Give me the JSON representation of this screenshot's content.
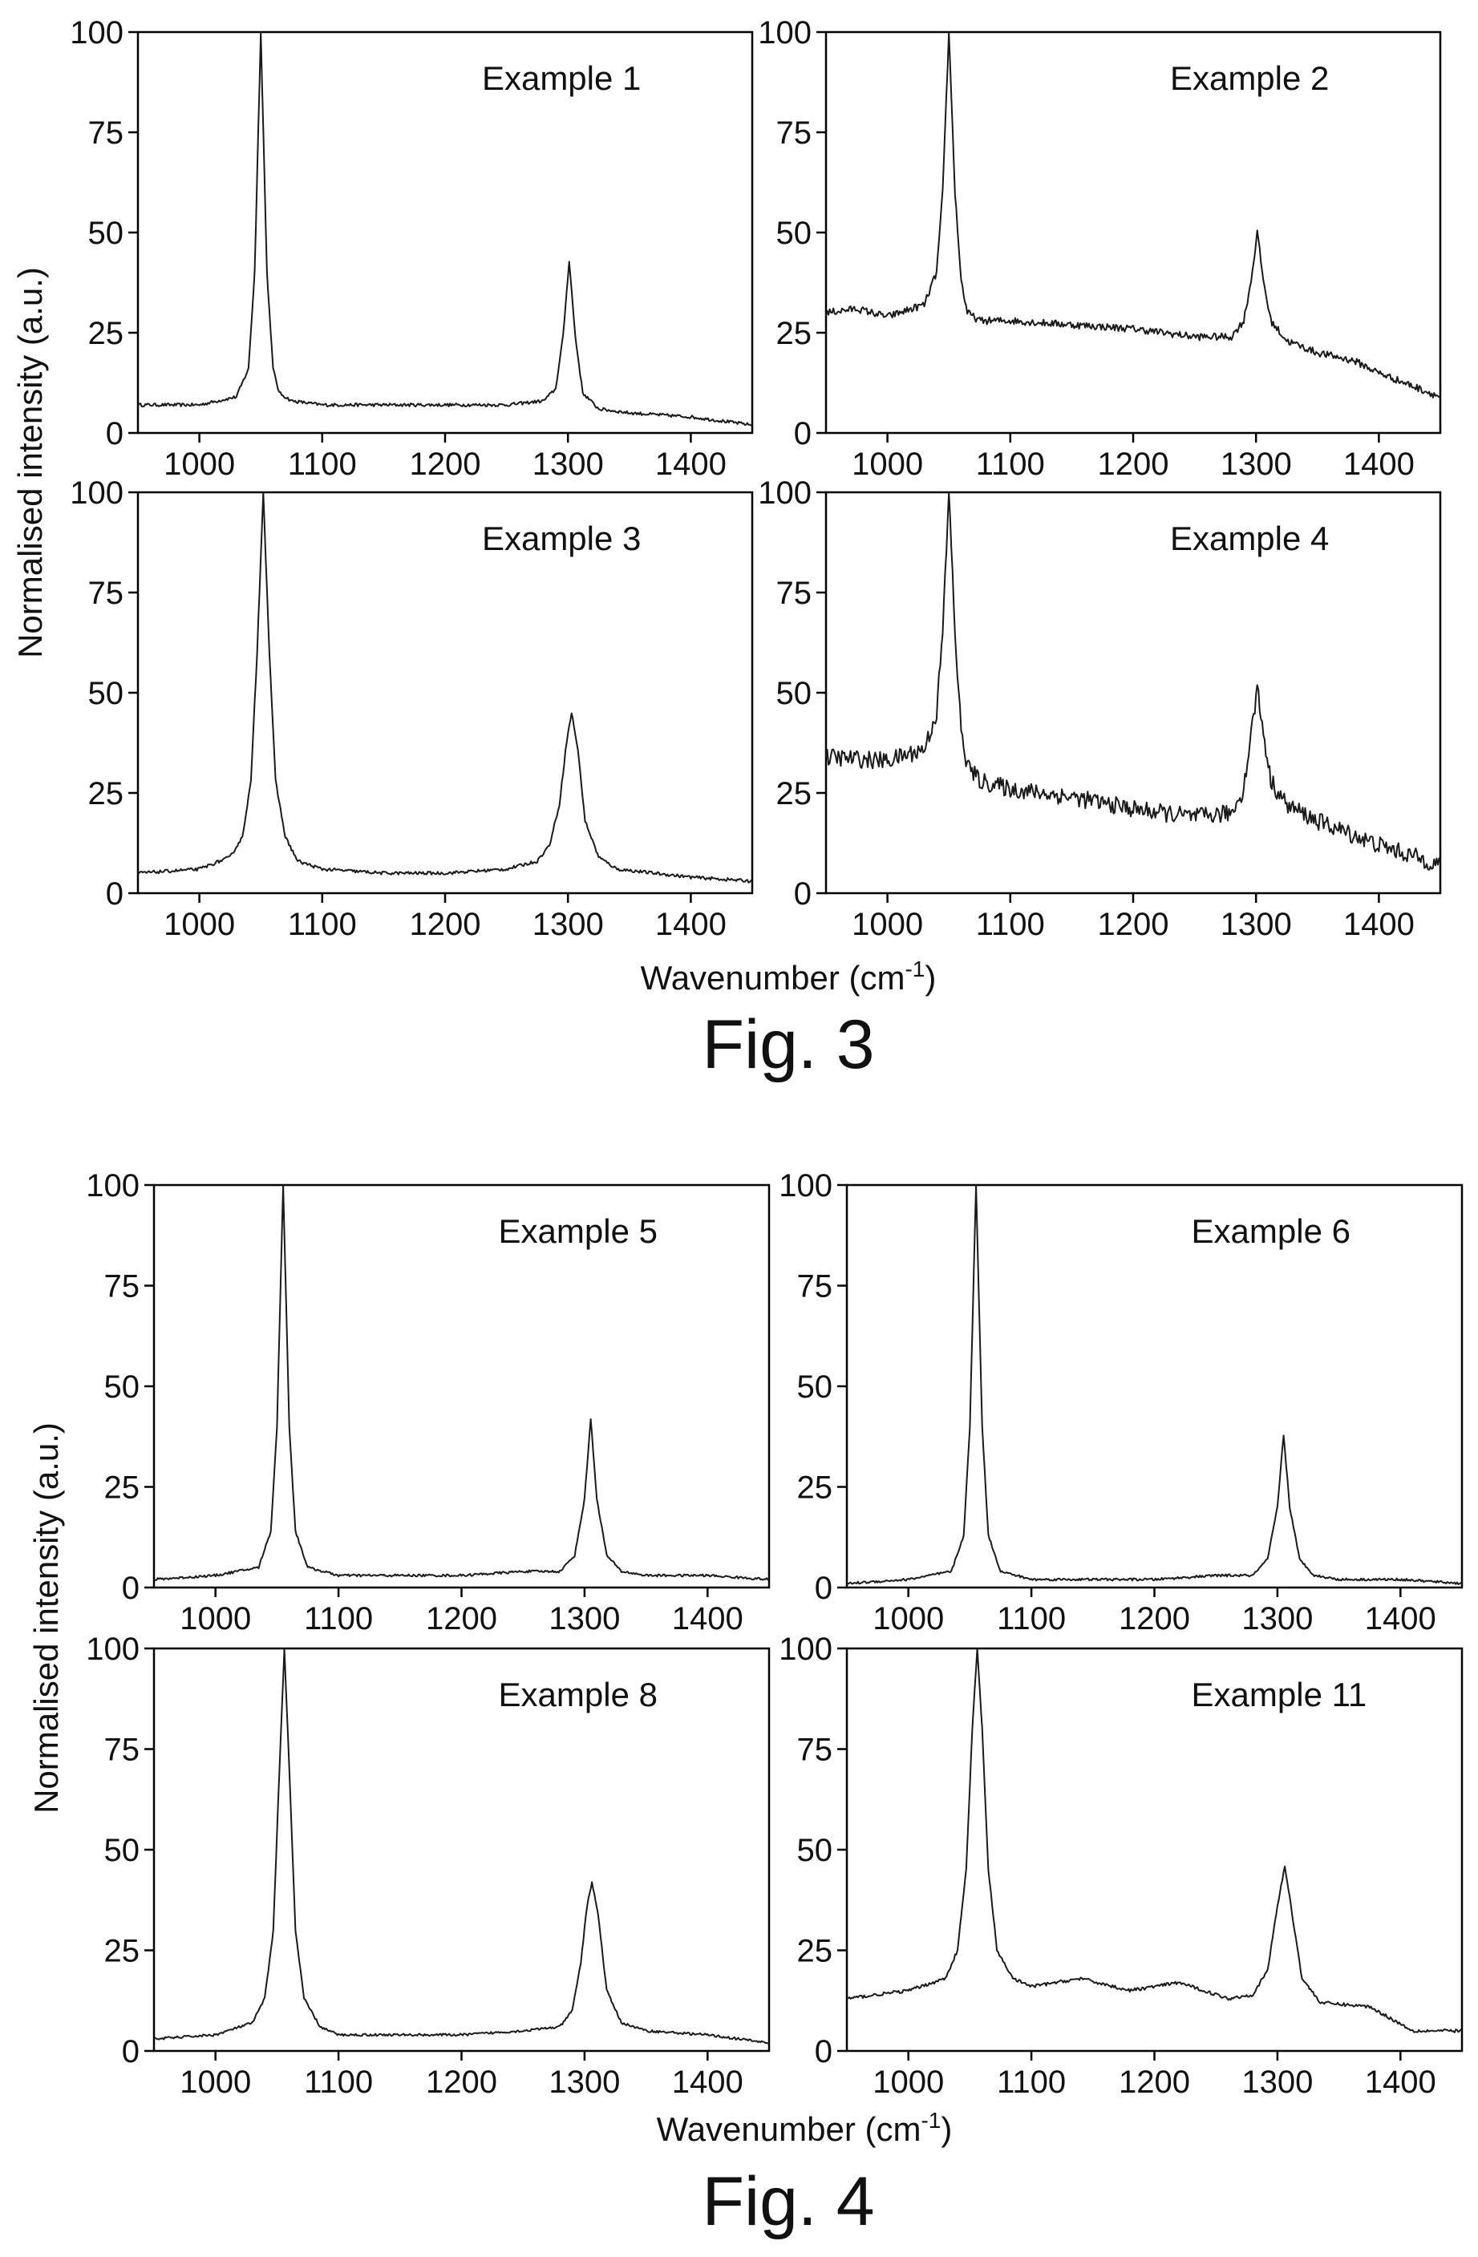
{
  "figures": [
    {
      "caption": "Fig. 3",
      "xlabel": "Wavenumber (cm",
      "xlabel_sup": "-1",
      "xlabel_close": ")",
      "ylabel": "Normalised intensity (a.u.)"
    },
    {
      "caption": "Fig. 4",
      "xlabel": "Wavenumber (cm",
      "xlabel_sup": "-1",
      "xlabel_close": ")",
      "ylabel": "Normalised intensity (a.u.)"
    }
  ],
  "chart_data": [
    {
      "type": "line",
      "figure": "Fig. 3",
      "label": "Example 1",
      "xlim": [
        950,
        1450
      ],
      "ylim": [
        0,
        100
      ],
      "xticks": [
        1000,
        1100,
        1200,
        1300,
        1400
      ],
      "yticks": [
        0,
        25,
        50,
        75,
        100
      ],
      "x": [
        950,
        1000,
        1030,
        1040,
        1045,
        1050,
        1055,
        1060,
        1065,
        1075,
        1100,
        1150,
        1200,
        1250,
        1280,
        1290,
        1296,
        1301,
        1306,
        1312,
        1325,
        1350,
        1400,
        1450
      ],
      "values": [
        7,
        7,
        9,
        16,
        40,
        100,
        40,
        16,
        10,
        8,
        7,
        7,
        7,
        7,
        8,
        11,
        24,
        43,
        24,
        10,
        6,
        5,
        4,
        2
      ],
      "noise": 0.4
    },
    {
      "type": "line",
      "figure": "Fig. 3",
      "label": "Example 2",
      "xlim": [
        950,
        1450
      ],
      "ylim": [
        0,
        100
      ],
      "xticks": [
        1000,
        1100,
        1200,
        1300,
        1400
      ],
      "yticks": [
        0,
        25,
        50,
        75,
        100
      ],
      "x": [
        950,
        975,
        1000,
        1030,
        1040,
        1045,
        1050,
        1055,
        1060,
        1065,
        1075,
        1100,
        1150,
        1200,
        1250,
        1280,
        1290,
        1296,
        1301,
        1306,
        1312,
        1325,
        1350,
        1380,
        1400,
        1450
      ],
      "values": [
        30,
        31,
        29,
        32,
        40,
        60,
        100,
        60,
        38,
        30,
        28,
        28,
        27,
        26,
        24,
        24,
        28,
        38,
        50,
        38,
        28,
        23,
        20,
        18,
        15,
        9
      ],
      "noise": 0.9
    },
    {
      "type": "line",
      "figure": "Fig. 3",
      "label": "Example 3",
      "xlim": [
        950,
        1450
      ],
      "ylim": [
        0,
        100
      ],
      "xticks": [
        1000,
        1100,
        1200,
        1300,
        1400
      ],
      "yticks": [
        0,
        25,
        50,
        75,
        100
      ],
      "x": [
        950,
        1000,
        1025,
        1035,
        1042,
        1047,
        1052,
        1057,
        1062,
        1070,
        1080,
        1100,
        1150,
        1200,
        1250,
        1275,
        1285,
        1293,
        1299,
        1303,
        1308,
        1314,
        1325,
        1340,
        1400,
        1450
      ],
      "values": [
        5,
        6,
        9,
        14,
        28,
        60,
        100,
        60,
        28,
        14,
        8,
        6,
        5,
        5,
        6,
        8,
        12,
        22,
        38,
        45,
        36,
        18,
        9,
        6,
        4,
        3
      ],
      "noise": 0.4
    },
    {
      "type": "line",
      "figure": "Fig. 3",
      "label": "Example 4",
      "xlim": [
        950,
        1450
      ],
      "ylim": [
        0,
        100
      ],
      "xticks": [
        1000,
        1100,
        1200,
        1300,
        1400
      ],
      "yticks": [
        0,
        25,
        50,
        75,
        100
      ],
      "x": [
        950,
        1000,
        1030,
        1040,
        1045,
        1050,
        1055,
        1060,
        1065,
        1075,
        1100,
        1150,
        1200,
        1250,
        1280,
        1290,
        1296,
        1301,
        1306,
        1312,
        1325,
        1350,
        1400,
        1450
      ],
      "values": [
        34,
        33,
        36,
        45,
        65,
        100,
        65,
        40,
        32,
        28,
        26,
        24,
        21,
        19,
        20,
        26,
        40,
        51,
        40,
        28,
        22,
        18,
        12,
        7
      ],
      "noise": 2.2
    },
    {
      "type": "line",
      "figure": "Fig. 4",
      "label": "Example 5",
      "xlim": [
        950,
        1450
      ],
      "ylim": [
        0,
        100
      ],
      "xticks": [
        1000,
        1100,
        1200,
        1300,
        1400
      ],
      "yticks": [
        0,
        25,
        50,
        75,
        100
      ],
      "x": [
        950,
        1000,
        1035,
        1045,
        1050,
        1055,
        1060,
        1065,
        1075,
        1100,
        1150,
        1200,
        1250,
        1280,
        1292,
        1300,
        1305,
        1310,
        1318,
        1330,
        1350,
        1400,
        1450
      ],
      "values": [
        2,
        3,
        5,
        14,
        40,
        100,
        40,
        14,
        5,
        3,
        3,
        3,
        4,
        4,
        8,
        22,
        42,
        22,
        8,
        4,
        3,
        3,
        2
      ],
      "noise": 0.3
    },
    {
      "type": "line",
      "figure": "Fig. 4",
      "label": "Example 6",
      "xlim": [
        950,
        1450
      ],
      "ylim": [
        0,
        100
      ],
      "xticks": [
        1000,
        1100,
        1200,
        1300,
        1400
      ],
      "yticks": [
        0,
        25,
        50,
        75,
        100
      ],
      "x": [
        950,
        1000,
        1035,
        1045,
        1050,
        1055,
        1060,
        1065,
        1075,
        1100,
        1150,
        1200,
        1250,
        1280,
        1292,
        1300,
        1305,
        1310,
        1318,
        1330,
        1350,
        1400,
        1450
      ],
      "values": [
        1,
        2,
        4,
        13,
        40,
        100,
        40,
        13,
        4,
        2,
        2,
        2,
        3,
        3,
        7,
        20,
        38,
        20,
        7,
        3,
        2,
        2,
        1
      ],
      "noise": 0.3
    },
    {
      "type": "line",
      "figure": "Fig. 4",
      "label": "Example 8",
      "xlim": [
        950,
        1450
      ],
      "ylim": [
        0,
        100
      ],
      "xticks": [
        1000,
        1100,
        1200,
        1300,
        1400
      ],
      "yticks": [
        0,
        25,
        50,
        75,
        100
      ],
      "x": [
        950,
        1000,
        1030,
        1040,
        1047,
        1052,
        1056,
        1060,
        1065,
        1072,
        1085,
        1100,
        1150,
        1200,
        1250,
        1280,
        1290,
        1297,
        1302,
        1306,
        1311,
        1318,
        1330,
        1350,
        1400,
        1450
      ],
      "values": [
        3,
        4,
        7,
        13,
        30,
        70,
        100,
        70,
        30,
        13,
        6,
        4,
        4,
        4,
        5,
        6,
        10,
        22,
        36,
        42,
        34,
        15,
        7,
        5,
        4,
        2
      ],
      "noise": 0.3
    },
    {
      "type": "line",
      "figure": "Fig. 4",
      "label": "Example 11",
      "xlim": [
        950,
        1450
      ],
      "ylim": [
        0,
        100
      ],
      "xticks": [
        1000,
        1100,
        1200,
        1300,
        1400
      ],
      "yticks": [
        0,
        25,
        50,
        75,
        100
      ],
      "x": [
        950,
        1000,
        1030,
        1040,
        1047,
        1052,
        1056,
        1060,
        1065,
        1072,
        1085,
        1100,
        1140,
        1180,
        1220,
        1260,
        1280,
        1292,
        1300,
        1306,
        1312,
        1320,
        1335,
        1375,
        1410,
        1450
      ],
      "values": [
        13,
        15,
        18,
        25,
        45,
        80,
        100,
        80,
        45,
        25,
        18,
        16,
        18,
        15,
        17,
        13,
        14,
        20,
        36,
        46,
        34,
        18,
        12,
        11,
        5,
        5
      ],
      "noise": 0.4
    }
  ]
}
